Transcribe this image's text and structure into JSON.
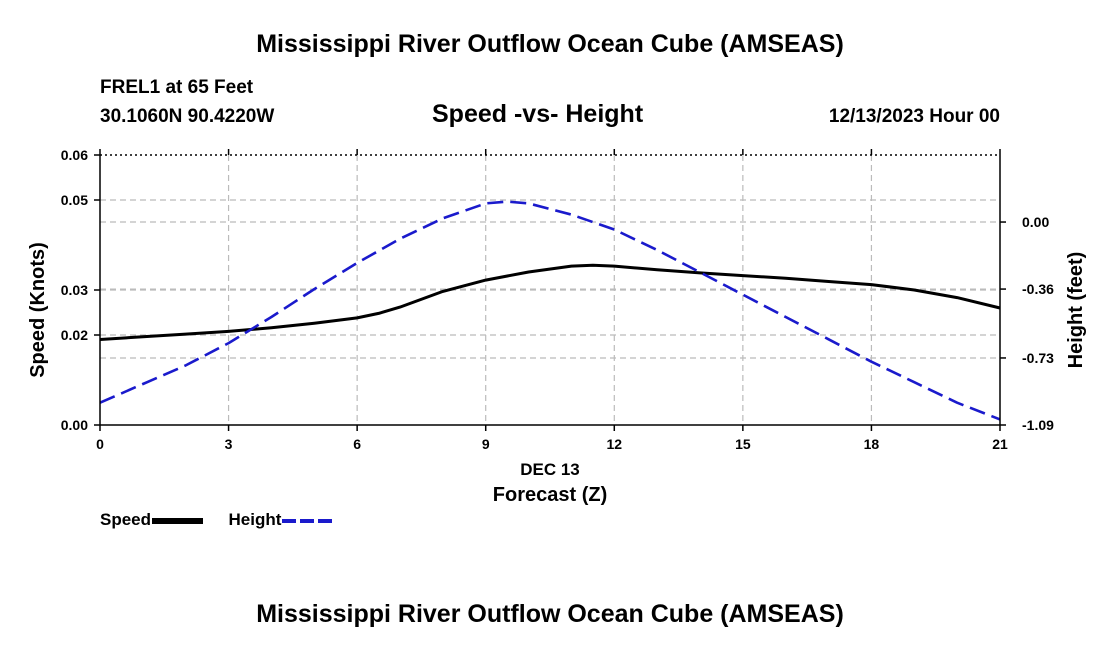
{
  "page": {
    "title": "Mississippi River Outflow Ocean Cube (AMSEAS)",
    "station": "FREL1 at 65 Feet",
    "coords": "30.1060N  90.4220W",
    "subtitle": "Speed -vs- Height",
    "datetime": "12/13/2023 Hour 00",
    "footer_title": "Mississippi River Outflow Ocean Cube (AMSEAS)"
  },
  "chart_data": {
    "type": "line",
    "title": "Speed -vs- Height",
    "xlabel": "Forecast (Z)",
    "xsublabel": "DEC 13",
    "ylabel": "Speed (Knots)",
    "y2label": "Height (feet)",
    "xlim": [
      0,
      21
    ],
    "ylim": [
      0,
      0.06
    ],
    "y2lim": [
      -1.09,
      0.36
    ],
    "xticks": [
      0,
      3,
      6,
      9,
      12,
      15,
      18,
      21
    ],
    "xtick_labels": [
      "0",
      "3",
      "6",
      "9",
      "12",
      "15",
      "18",
      "21"
    ],
    "yticks": [
      0.0,
      0.02,
      0.03,
      0.05,
      0.06
    ],
    "ytick_labels": [
      "0.00",
      "0.02",
      "0.03",
      "0.05",
      "0.06"
    ],
    "y2ticks": [
      0.0,
      -0.36,
      -0.73,
      -1.09
    ],
    "y2tick_labels": [
      "0.00",
      "-0.36",
      "-0.73",
      "-1.09"
    ],
    "grid": true,
    "series": [
      {
        "name": "Speed",
        "axis": "left",
        "color": "#000000",
        "style": "solid",
        "x": [
          0,
          1,
          2,
          3,
          4,
          5,
          6,
          6.5,
          7,
          8,
          9,
          10,
          11,
          11.5,
          12,
          13,
          14,
          15,
          16,
          17,
          18,
          19,
          20,
          21
        ],
        "y": [
          0.019,
          0.0196,
          0.0202,
          0.0208,
          0.0216,
          0.0226,
          0.0238,
          0.0248,
          0.0262,
          0.0297,
          0.0322,
          0.034,
          0.0353,
          0.0355,
          0.0353,
          0.0345,
          0.0338,
          0.0332,
          0.0326,
          0.0319,
          0.0312,
          0.03,
          0.0283,
          0.026
        ]
      },
      {
        "name": "Height",
        "axis": "right",
        "color": "#1a1acc",
        "style": "dashed",
        "x": [
          0,
          1,
          2,
          3,
          4,
          5,
          6,
          7,
          8,
          9,
          9.5,
          10,
          11,
          12,
          13,
          14,
          15,
          16,
          17,
          18,
          19,
          20,
          21
        ],
        "y": [
          -0.97,
          -0.87,
          -0.77,
          -0.65,
          -0.51,
          -0.36,
          -0.22,
          -0.09,
          0.02,
          0.1,
          0.11,
          0.1,
          0.04,
          -0.04,
          -0.15,
          -0.27,
          -0.39,
          -0.51,
          -0.63,
          -0.75,
          -0.86,
          -0.97,
          -1.06
        ]
      }
    ],
    "legend": [
      {
        "name": "Speed",
        "color": "#000000",
        "style": "solid"
      },
      {
        "name": "Height",
        "color": "#1a1acc",
        "style": "dashed"
      }
    ]
  }
}
